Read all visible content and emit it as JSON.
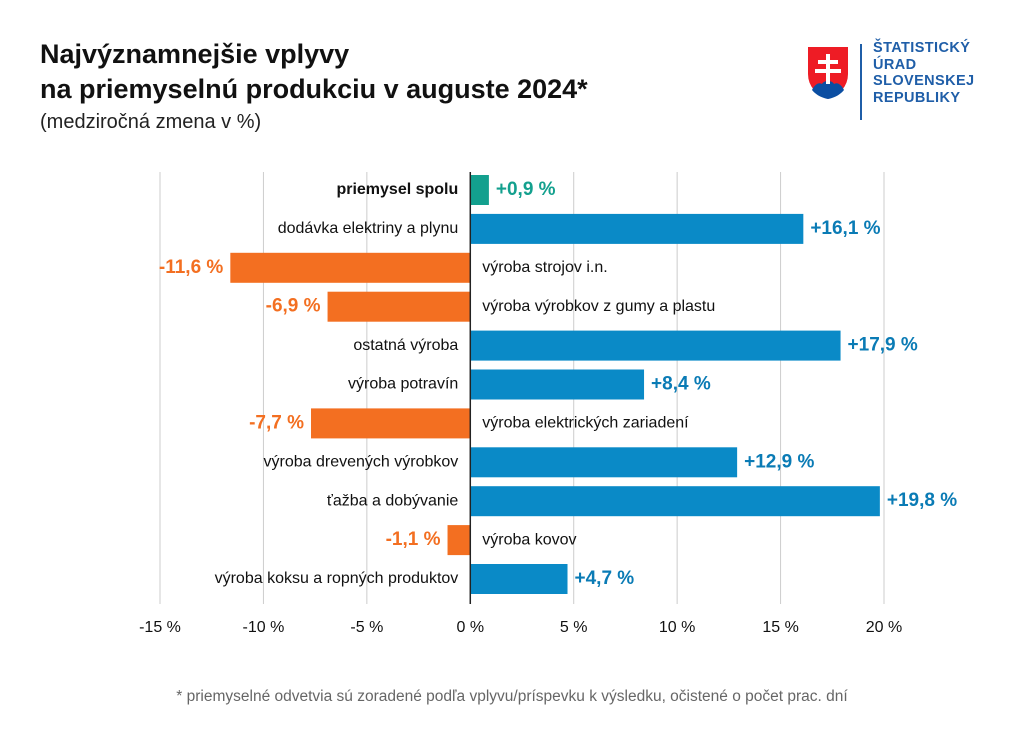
{
  "header": {
    "title_line1": "Najvýznamnejšie vplyvy",
    "title_line2": "na priemyselnú produkciu v auguste 2024*",
    "subtitle": "(medziročná zmena v %)"
  },
  "logo": {
    "line1": "ŠTATISTICKÝ",
    "line2": "ÚRAD",
    "line3": "SLOVENSKEJ",
    "line4": "REPUBLIKY"
  },
  "footnote": "* priemyselné odvetvia sú zoradené podľa vplyvu/príspevku k výsledku, očistené o počet prac. dní",
  "colors": {
    "total": "#13a08e",
    "positive": "#0a8ac7",
    "negative": "#f36f21",
    "positive_label": "#0a7bb5",
    "negative_label": "#f36f21",
    "grid": "#cccccc",
    "zero_axis": "#222222"
  },
  "chart_data": {
    "type": "bar",
    "orientation": "horizontal",
    "title": "Najvýznamnejšie vplyvy na priemyselnú produkciu v auguste 2024*",
    "subtitle": "(medziročná zmena v %)",
    "xlabel": "",
    "ylabel": "",
    "xlim": [
      -15,
      20
    ],
    "x_ticks": [
      -15,
      -10,
      -5,
      0,
      5,
      10,
      15,
      20
    ],
    "x_tick_labels": [
      "-15 %",
      "-10 %",
      "-5 %",
      "0 %",
      "5 %",
      "10 %",
      "15 %",
      "20 %"
    ],
    "grid": true,
    "categories": [
      "priemysel spolu",
      "dodávka elektriny a plynu",
      "výroba strojov i.n.",
      "výroba výrobkov z gumy a plastu",
      "ostatná výroba",
      "výroba potravín",
      "výroba elektrických zariadení",
      "výroba drevených výrobkov",
      "ťažba a dobývanie",
      "výroba kovov",
      "výroba koksu a ropných produktov"
    ],
    "values": [
      0.9,
      16.1,
      -11.6,
      -6.9,
      17.9,
      8.4,
      -7.7,
      12.9,
      19.8,
      -1.1,
      4.7
    ],
    "value_labels": [
      "+0,9 %",
      "+16,1 %",
      "-11,6 %",
      "-6,9 %",
      "+17,9 %",
      "+8,4 %",
      "-7,7 %",
      "+12,9 %",
      "+19,8 %",
      "-1,1 %",
      "+4,7 %"
    ],
    "highlight_category": "priemysel spolu"
  }
}
